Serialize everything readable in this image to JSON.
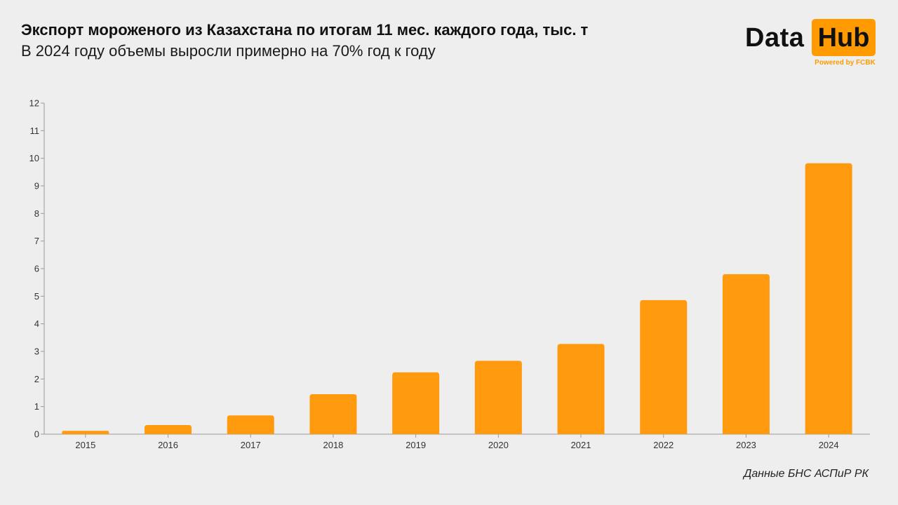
{
  "header": {
    "title": "Экспорт мороженого из Казахстана по итогам 11 мес. каждого года, тыс. т",
    "subtitle": "В 2024 году объемы выросли примерно на 70% год к году"
  },
  "logo": {
    "word1": "Data",
    "word2": "Hub",
    "powered": "Powered by FCBK",
    "accent_color": "#ff9a00"
  },
  "source": "Данные БНС АСПиР РК",
  "chart_data": {
    "type": "bar",
    "categories": [
      "2015",
      "2016",
      "2017",
      "2018",
      "2019",
      "2020",
      "2021",
      "2022",
      "2023",
      "2024"
    ],
    "values": [
      0.12,
      0.33,
      0.68,
      1.45,
      2.24,
      2.66,
      3.27,
      4.86,
      5.8,
      9.82
    ],
    "ylim": [
      0,
      12
    ],
    "yticks": [
      "0",
      "1",
      "2",
      "3",
      "4",
      "5",
      "6",
      "7",
      "8",
      "9",
      "10",
      "11",
      "12"
    ],
    "grid": false,
    "legend": "none",
    "bar_color": "#ff9a0f"
  }
}
